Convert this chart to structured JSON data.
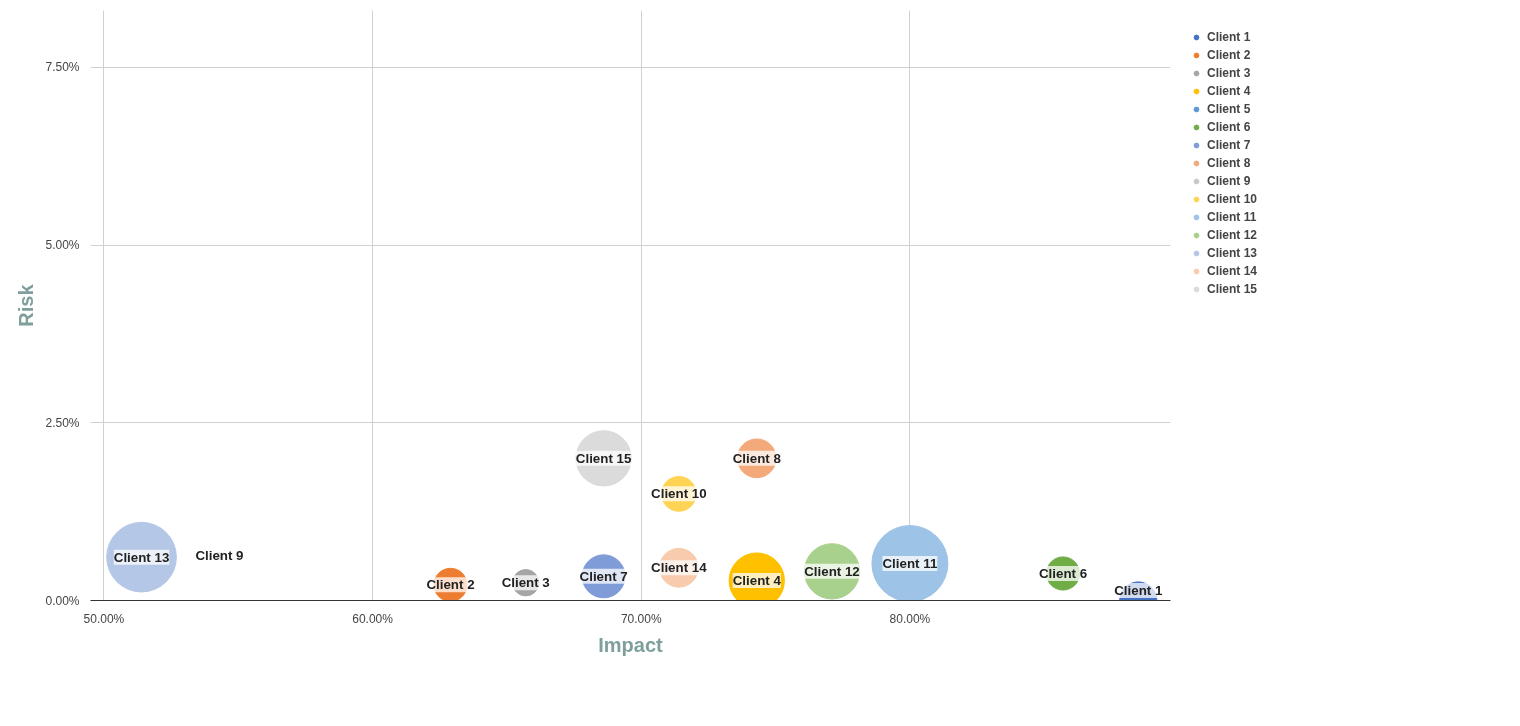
{
  "chart_data": {
    "type": "bubble",
    "xlabel": "Impact",
    "ylabel": "Risk",
    "xlim": [
      49.5,
      89.7
    ],
    "ylim": [
      0,
      8.3
    ],
    "xticks": [
      {
        "value": 50,
        "label": "50.00%"
      },
      {
        "value": 60,
        "label": "60.00%"
      },
      {
        "value": 70,
        "label": "70.00%"
      },
      {
        "value": 80,
        "label": "80.00%"
      }
    ],
    "yticks": [
      {
        "value": 0,
        "label": "0.00%"
      },
      {
        "value": 2.5,
        "label": "2.50%"
      },
      {
        "value": 5,
        "label": "5.00%"
      },
      {
        "value": 7.5,
        "label": "7.50%"
      }
    ],
    "grid": true,
    "legend": "top right",
    "series": [
      {
        "name": "Client 1",
        "color": "#4472c4",
        "x": [
          88.5
        ],
        "values": [
          0.0
        ],
        "sizes": [
          0.24
        ]
      },
      {
        "name": "Client 2",
        "color": "#ed7d31",
        "x": [
          62.9
        ],
        "values": [
          0.22
        ],
        "sizes": [
          0.19
        ]
      },
      {
        "name": "Client 3",
        "color": "#a5a5a5",
        "x": [
          65.7
        ],
        "values": [
          0.25
        ],
        "sizes": [
          0.12
        ]
      },
      {
        "name": "Client 4",
        "color": "#ffc000",
        "x": [
          74.3
        ],
        "values": [
          0.28
        ],
        "sizes": [
          0.53
        ]
      },
      {
        "name": "Client 5",
        "color": "#5b9bd5",
        "x": [
          null
        ],
        "values": [
          null
        ],
        "sizes": [
          null
        ]
      },
      {
        "name": "Client 6",
        "color": "#70ad47",
        "x": [
          85.7
        ],
        "values": [
          0.38
        ],
        "sizes": [
          0.19
        ]
      },
      {
        "name": "Client 7",
        "color": "#7f9bd8",
        "x": [
          68.6
        ],
        "values": [
          0.34
        ],
        "sizes": [
          0.32
        ]
      },
      {
        "name": "Client 8",
        "color": "#f4a97a",
        "x": [
          74.3
        ],
        "values": [
          2.0
        ],
        "sizes": [
          0.26
        ]
      },
      {
        "name": "Client 9",
        "color": "#c9c9c9",
        "x": [
          54.3
        ],
        "values": [
          0.63
        ],
        "sizes": [
          0.01
        ]
      },
      {
        "name": "Client 10",
        "color": "#ffd455",
        "x": [
          71.4
        ],
        "values": [
          1.5
        ],
        "sizes": [
          0.21
        ]
      },
      {
        "name": "Client 11",
        "color": "#9dc3e6",
        "x": [
          80.0
        ],
        "values": [
          0.52
        ],
        "sizes": [
          1
        ]
      },
      {
        "name": "Client 12",
        "color": "#a9d18e",
        "x": [
          77.1
        ],
        "values": [
          0.41
        ],
        "sizes": [
          0.53
        ]
      },
      {
        "name": "Client 13",
        "color": "#b4c7e7",
        "x": [
          51.4
        ],
        "values": [
          0.61
        ],
        "sizes": [
          0.84
        ]
      },
      {
        "name": "Client 14",
        "color": "#f8cbad",
        "x": [
          71.4
        ],
        "values": [
          0.46
        ],
        "sizes": [
          0.26
        ]
      },
      {
        "name": "Client 15",
        "color": "#dbdbdb",
        "x": [
          68.6
        ],
        "values": [
          2.0
        ],
        "sizes": [
          0.53
        ]
      }
    ]
  }
}
